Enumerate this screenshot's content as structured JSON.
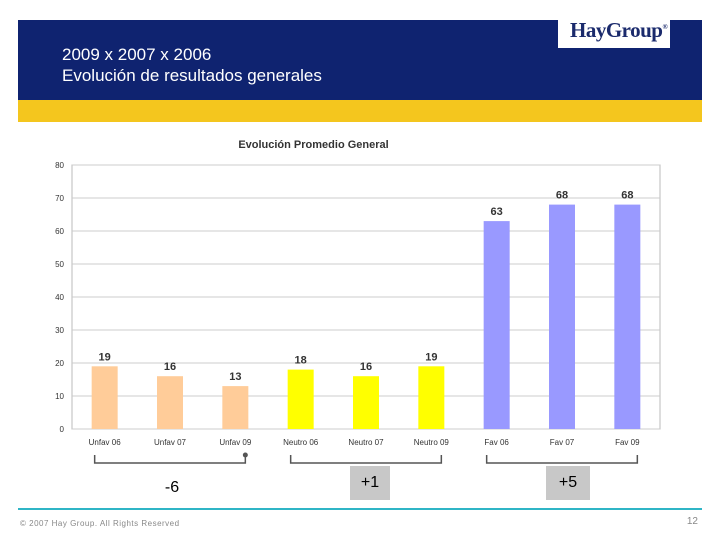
{
  "header": {
    "title_line1": "2009 x 2007 x 2006",
    "title_line2": "Evolución de resultados generales",
    "logo": "HayGroup",
    "colors": {
      "navy": "#0f2370",
      "yellow": "#f4c61e"
    }
  },
  "chart_data": {
    "type": "bar",
    "title": "Evolución Promedio General",
    "categories": [
      "Unfav 06",
      "Unfav 07",
      "Unfav 09",
      "Neutro 06",
      "Neutro 07",
      "Neutro 09",
      "Fav  06",
      "Fav  07",
      "Fav  09"
    ],
    "values": [
      19,
      16,
      13,
      18,
      16,
      19,
      63,
      68,
      68
    ],
    "bar_colors": [
      "#ffcc99",
      "#ffcc99",
      "#ffcc99",
      "#ffff00",
      "#ffff00",
      "#ffff00",
      "#9999ff",
      "#9999ff",
      "#9999ff"
    ],
    "ylim": [
      0,
      80
    ],
    "yticks": [
      0,
      10,
      20,
      30,
      40,
      50,
      60,
      70,
      80
    ],
    "grid": true,
    "xlabel": "",
    "ylabel": ""
  },
  "differences": {
    "unfav": "-6",
    "neutro": "+1",
    "fav": "+5"
  },
  "footer": {
    "copyright": "© 2007 Hay Group. All Rights Reserved",
    "page_number": "12"
  }
}
